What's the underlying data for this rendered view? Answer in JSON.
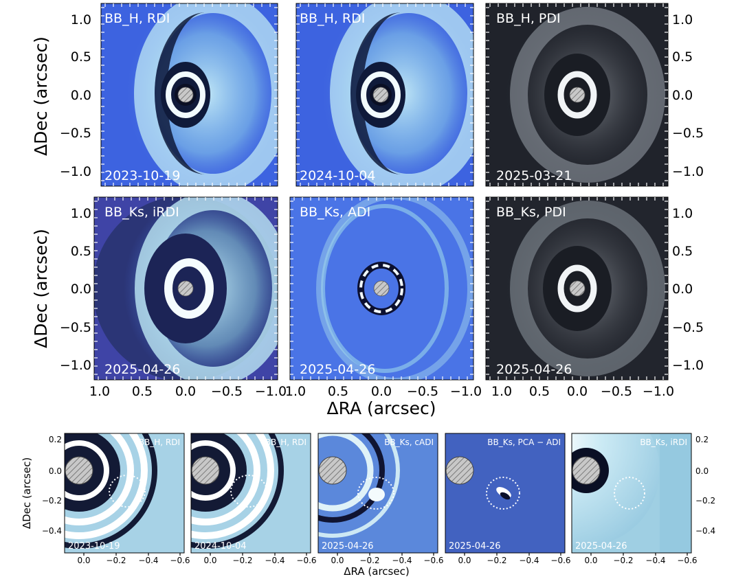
{
  "figure": {
    "top_panels": [
      {
        "label": "BB_H, RDI",
        "date": "2023-10-19",
        "theme": "blue"
      },
      {
        "label": "BB_H, RDI",
        "date": "2024-10-04",
        "theme": "blue"
      },
      {
        "label": "BB_H, PDI",
        "date": "2025-03-21",
        "theme": "gray"
      },
      {
        "label": "BB_Ks, iRDI",
        "date": "2025-04-26",
        "theme": "blue"
      },
      {
        "label": "BB_Ks, ADI",
        "date": "2025-04-26",
        "theme": "blue"
      },
      {
        "label": "BB_Ks, PDI",
        "date": "2025-04-26",
        "theme": "gray"
      }
    ],
    "top_x_label": "ΔRA (arcsec)",
    "top_y_label": "ΔDec (arcsec)",
    "top_x_ticks": [
      "1.0",
      "0.5",
      "0.0",
      "−0.5",
      "−1.0"
    ],
    "top_y_ticks": [
      "1.0",
      "0.5",
      "0.0",
      "−0.5",
      "−1.0"
    ],
    "bottom_panels": [
      {
        "label": "BB_H, RDI",
        "date": "2023-10-19"
      },
      {
        "label": "BB_H, RDI",
        "date": "2024-10-04"
      },
      {
        "label": "BB_Ks, cADI",
        "date": "2025-04-26"
      },
      {
        "label": "BB_Ks, PCA − ADI",
        "date": "2025-04-26"
      },
      {
        "label": "BB_Ks, iRDI",
        "date": "2025-04-26"
      }
    ],
    "bottom_x_label": "ΔRA (arcsec)",
    "bottom_y_label": "ΔDec (arcsec)",
    "bottom_x_ticks": [
      "0.0",
      "−0.2",
      "−0.4",
      "−0.6"
    ],
    "bottom_y_ticks": [
      "0.2",
      "0.0",
      "−0.2",
      "−0.4"
    ],
    "colors": {
      "blue_bg": "#3d63e0",
      "blue_bright": "#dff2f8",
      "gray_bg": "#20232b",
      "gray_bright": "#f4f6f8",
      "zoom_bg": "#9fcfe3"
    }
  }
}
